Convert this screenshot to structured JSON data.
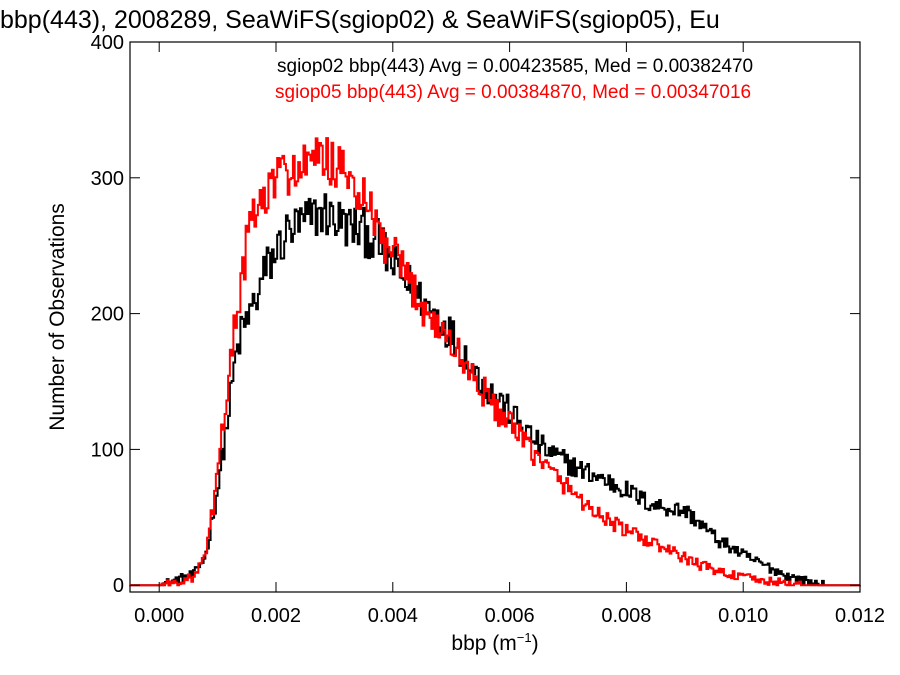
{
  "chart_data": {
    "type": "histogram",
    "title": "bbp(443), 2008289, SeaWiFS(sgiop02) & SeaWiFS(sgiop05), Eu",
    "xlabel": "bbp (m",
    "xlabel_exponent": "−1",
    "xlabel_close": ")",
    "ylabel": "Number of Observations",
    "xlim": [
      -0.0005,
      0.012
    ],
    "ylim": [
      -5,
      400
    ],
    "grid": false,
    "legend_position": "top-right",
    "x_ticks": [
      "0.000",
      "0.002",
      "0.004",
      "0.006",
      "0.008",
      "0.010",
      "0.012"
    ],
    "y_ticks": [
      "0",
      "100",
      "200",
      "300",
      "400"
    ],
    "bin_width": 3e-05,
    "series": [
      {
        "name": "sgiop02",
        "color": "#000000",
        "legend_text": "sgiop02 bbp(443) Avg = 0.00423585, Med = 0.00382470",
        "profile_x": [
          -0.0005,
          0.0,
          0.0003,
          0.0006,
          0.0008,
          0.001,
          0.0012,
          0.0013,
          0.0014,
          0.0015,
          0.0016,
          0.0017,
          0.0018,
          0.002,
          0.0022,
          0.0024,
          0.0026,
          0.0028,
          0.003,
          0.0032,
          0.0034,
          0.0036,
          0.0038,
          0.004,
          0.0042,
          0.0044,
          0.0046,
          0.0048,
          0.005,
          0.0052,
          0.0054,
          0.0056,
          0.0058,
          0.006,
          0.0062,
          0.0064,
          0.0066,
          0.0068,
          0.007,
          0.0072,
          0.0074,
          0.0076,
          0.0078,
          0.008,
          0.0082,
          0.0084,
          0.0086,
          0.0088,
          0.009,
          0.0092,
          0.0094,
          0.0096,
          0.0098,
          0.01,
          0.0102,
          0.0104,
          0.0106,
          0.0108,
          0.011,
          0.0112,
          0.0114,
          0.0116,
          0.012
        ],
        "profile_y": [
          0,
          0,
          4,
          8,
          22,
          70,
          130,
          165,
          185,
          195,
          205,
          215,
          230,
          245,
          260,
          265,
          270,
          275,
          270,
          265,
          262,
          258,
          250,
          235,
          225,
          215,
          205,
          197,
          185,
          172,
          158,
          145,
          138,
          128,
          118,
          108,
          100,
          95,
          90,
          85,
          82,
          78,
          74,
          70,
          65,
          60,
          58,
          56,
          55,
          48,
          40,
          32,
          28,
          22,
          18,
          14,
          10,
          6,
          4,
          2,
          0,
          0,
          0
        ]
      },
      {
        "name": "sgiop05",
        "color": "#ff0000",
        "legend_text": "sgiop05 bbp(443) Avg = 0.00384870, Med = 0.00347016",
        "profile_x": [
          -0.0005,
          0.0,
          0.0003,
          0.0006,
          0.0008,
          0.001,
          0.0012,
          0.0013,
          0.0014,
          0.0015,
          0.0016,
          0.0017,
          0.0018,
          0.0019,
          0.002,
          0.0022,
          0.0024,
          0.0026,
          0.0028,
          0.003,
          0.0032,
          0.0034,
          0.0036,
          0.0038,
          0.004,
          0.0042,
          0.0044,
          0.0046,
          0.0048,
          0.005,
          0.0052,
          0.0054,
          0.0056,
          0.0058,
          0.006,
          0.0062,
          0.0064,
          0.0066,
          0.0068,
          0.007,
          0.0072,
          0.0074,
          0.0076,
          0.0078,
          0.008,
          0.0082,
          0.0084,
          0.0086,
          0.0088,
          0.009,
          0.0092,
          0.0094,
          0.0096,
          0.0098,
          0.01,
          0.0102,
          0.0104,
          0.0106,
          0.0108,
          0.011,
          0.0112,
          0.012
        ],
        "profile_y": [
          0,
          0,
          2,
          6,
          22,
          80,
          160,
          190,
          220,
          250,
          270,
          278,
          282,
          290,
          300,
          305,
          305,
          310,
          315,
          310,
          300,
          290,
          275,
          255,
          242,
          228,
          215,
          200,
          190,
          178,
          165,
          152,
          140,
          128,
          118,
          108,
          98,
          88,
          80,
          72,
          64,
          56,
          50,
          45,
          40,
          36,
          32,
          28,
          24,
          20,
          16,
          13,
          10,
          8,
          6,
          4,
          3,
          2,
          1,
          0,
          0,
          0
        ]
      }
    ]
  }
}
